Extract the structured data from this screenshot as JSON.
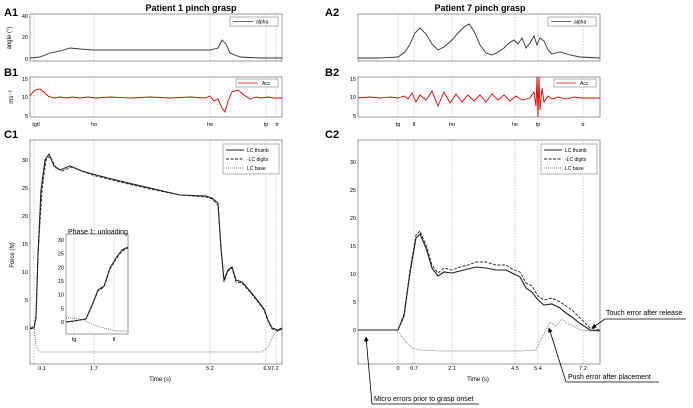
{
  "panels": {
    "A1": {
      "label": "A1",
      "title": "Patient 1 pinch grasp",
      "ylabel": "angle (°)",
      "yticks": [
        "0",
        "20",
        "40"
      ],
      "legend": "alpha"
    },
    "B1": {
      "label": "B1",
      "ylabel": "ms⁻²",
      "yticks": [
        "5",
        "10",
        "15"
      ],
      "legend": "Acc",
      "markers": [
        "tgtl",
        "ho",
        "he",
        "tp",
        "tr"
      ]
    },
    "C1": {
      "label": "C1",
      "ylabel": "Force (N)",
      "xlabel": "Time (s)",
      "yticks": [
        "0",
        "5",
        "10",
        "15",
        "20",
        "25",
        "30"
      ],
      "xticks": [
        "0.1",
        "1.7",
        "5.2",
        "6.97.2"
      ],
      "legend": [
        "LC thumb",
        "-LC digits",
        "LC base"
      ]
    },
    "C1_inset": {
      "title": "Phase 1: unloading",
      "yticks": [
        "0",
        "5",
        "10",
        "15",
        "20",
        "25",
        "30"
      ],
      "markers": [
        "tg",
        "tl"
      ]
    },
    "A2": {
      "label": "A2",
      "title": "Patient 7 pinch grasp",
      "legend": "alpha"
    },
    "B2": {
      "label": "B2",
      "legend": "Acc",
      "markers": [
        "tg",
        "tl",
        "ho",
        "he",
        "tp",
        "tr"
      ]
    },
    "C2": {
      "label": "C2",
      "xlabel": "Time (s)",
      "xticks": [
        "0",
        "0.7",
        "2.1",
        "4.5",
        "5.4",
        "7.2"
      ],
      "legend": [
        "LC thumb",
        "-LC digits",
        "LC base"
      ]
    }
  },
  "annotations": {
    "touch": "Touch error after release",
    "push": "Push error after placement",
    "micro": "Micro errors prior to grasp onset"
  },
  "colors": {
    "acc": "#e00000",
    "line": "#222222"
  },
  "chart_data": [
    {
      "type": "line",
      "panel": "C1",
      "ylim": [
        -5,
        33
      ],
      "x": [
        0,
        0.1,
        0.2,
        0.3,
        0.5,
        1.0,
        1.7,
        2.5,
        3.5,
        4.5,
        5.2,
        5.3,
        5.5,
        5.8,
        6.2,
        6.6,
        6.9,
        7.2
      ],
      "series": [
        {
          "name": "LC thumb",
          "values": [
            0,
            2,
            20,
            30,
            31,
            28,
            26,
            25,
            24,
            22.5,
            22,
            21.5,
            10,
            13,
            11,
            5,
            1,
            0
          ]
        }
      ]
    },
    {
      "type": "line",
      "panel": "C2",
      "ylim": [
        -5,
        33
      ],
      "x": [
        0,
        0.3,
        0.7,
        1.0,
        1.5,
        2.1,
        2.7,
        3.3,
        3.9,
        4.5,
        5.0,
        5.4,
        5.8,
        6.3,
        6.8,
        7.2
      ],
      "series": [
        {
          "name": "LC thumb",
          "values": [
            0,
            4,
            15,
            17,
            11,
            10,
            10.5,
            11,
            10.5,
            10,
            8,
            5,
            3,
            2.5,
            1.5,
            0
          ]
        }
      ]
    }
  ]
}
